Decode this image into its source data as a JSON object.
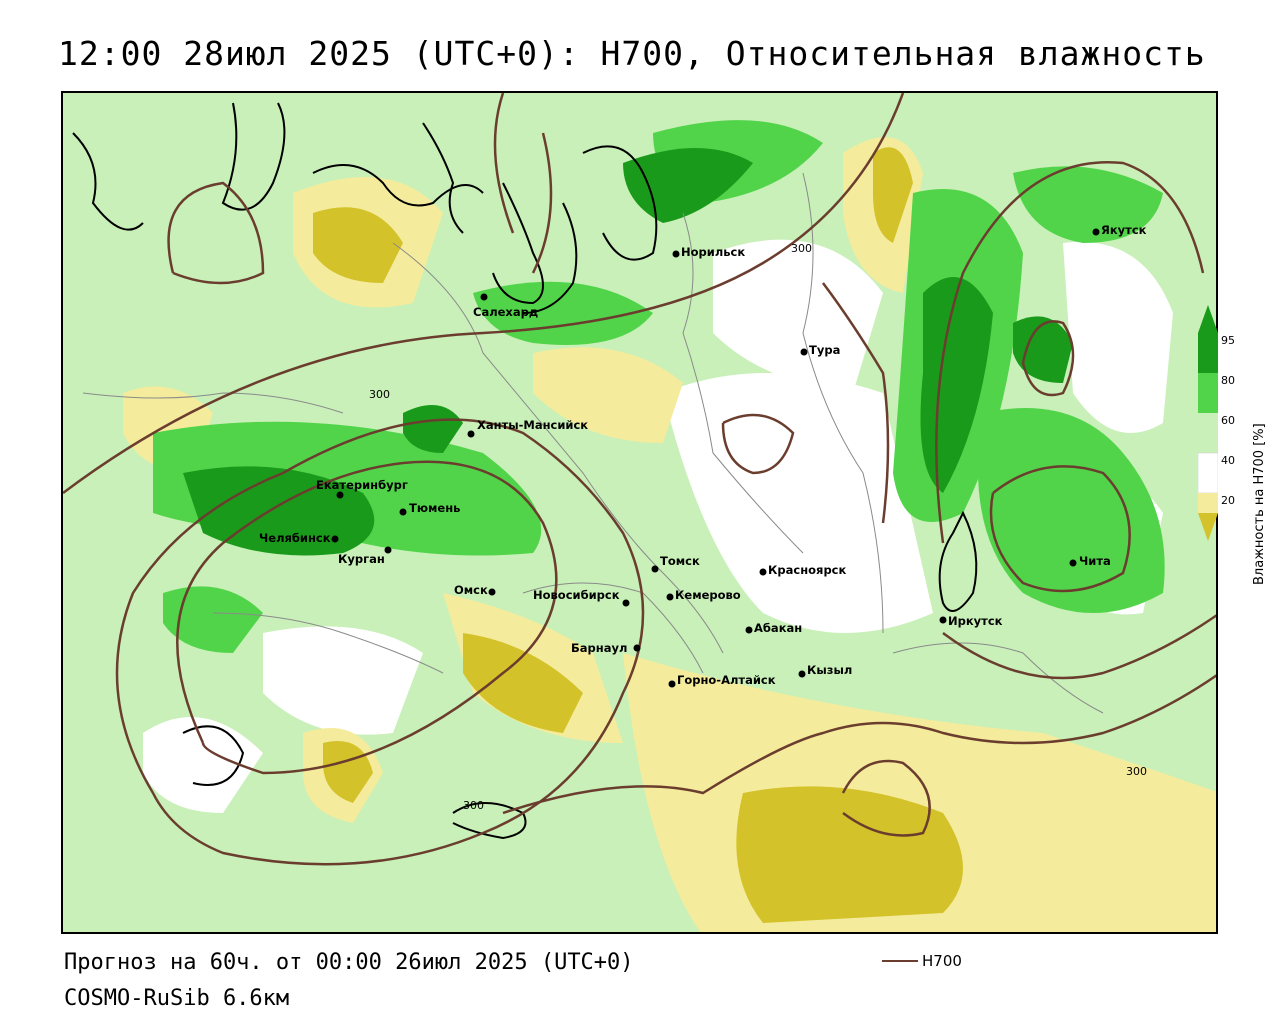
{
  "title": "12:00 28июл 2025 (UTC+0): H700, Относительная влажность",
  "footer": {
    "forecast": "Прогноз на 60ч. от 00:00 26июл 2025 (UTC+0)",
    "model": "COSMO-RuSib 6.6км"
  },
  "legend": {
    "line_label": "H700",
    "line_color": "#6b3d2e"
  },
  "colorbar": {
    "title": "Влажность на H700 [%]",
    "ticks": [
      "95",
      "80",
      "60",
      "40",
      "20"
    ],
    "colors": {
      "very_dry": "#d4c22a",
      "dry": "#f4ec9c",
      "neutral": "#ffffff",
      "moist": "#c8f0b8",
      "wet": "#52d44a",
      "very_wet": "#1a9a1a"
    }
  },
  "contour_labels": [
    "300",
    "300",
    "300",
    "300"
  ],
  "cities": [
    {
      "name": "Норильск"
    },
    {
      "name": "Салехард"
    },
    {
      "name": "Тура"
    },
    {
      "name": "Якутск"
    },
    {
      "name": "Ханты-Мансийск"
    },
    {
      "name": "Екатеринбург"
    },
    {
      "name": "Тюмень"
    },
    {
      "name": "Челябинск"
    },
    {
      "name": "Курган"
    },
    {
      "name": "Омск"
    },
    {
      "name": "Новосибирск"
    },
    {
      "name": "Томск"
    },
    {
      "name": "Кемерово"
    },
    {
      "name": "Красноярск"
    },
    {
      "name": "Барнаул"
    },
    {
      "name": "Абакан"
    },
    {
      "name": "Горно-Алтайск"
    },
    {
      "name": "Кызыл"
    },
    {
      "name": "Иркутск"
    },
    {
      "name": "Чита"
    }
  ]
}
